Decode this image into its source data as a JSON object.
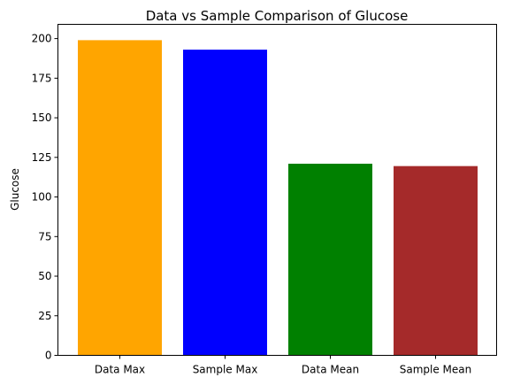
{
  "chart_data": {
    "type": "bar",
    "title": "Data vs Sample Comparison of Glucose",
    "xlabel": "",
    "ylabel": "Glucose",
    "categories": [
      "Data Max",
      "Sample Max",
      "Data Mean",
      "Sample Mean"
    ],
    "values": [
      199,
      193,
      121,
      119.5
    ],
    "colors": [
      "#ffa500",
      "#0000ff",
      "#008000",
      "#a52a2a"
    ],
    "ylim": [
      0,
      209
    ],
    "yticks": [
      0,
      25,
      50,
      75,
      100,
      125,
      150,
      175,
      200
    ],
    "grid": false,
    "legend": "none"
  }
}
